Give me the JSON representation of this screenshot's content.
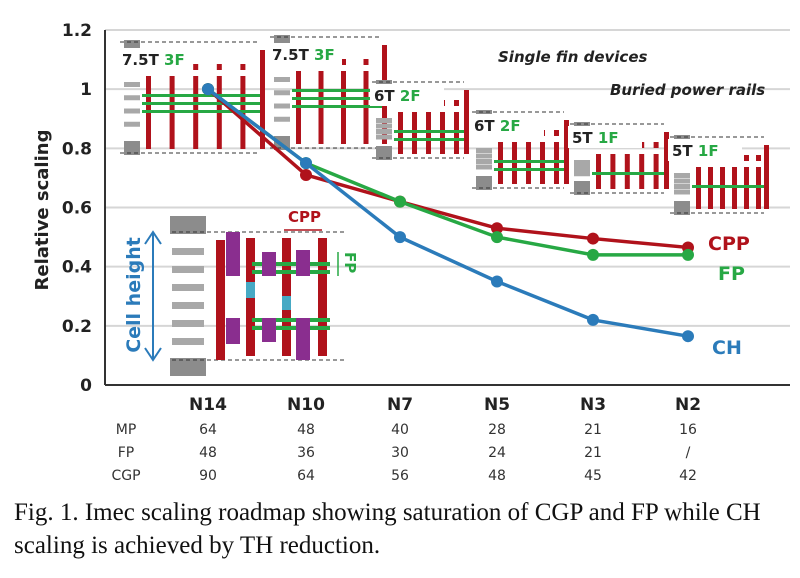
{
  "chart_data": {
    "type": "line",
    "categories": [
      "N14",
      "N10",
      "N7",
      "N5",
      "N3",
      "N2"
    ],
    "ylabel": "Relative scaling",
    "ylim": [
      0,
      1.2
    ],
    "yticks": [
      "0",
      "0.2",
      "0.4",
      "0.6",
      "0.8",
      "1",
      "1.2"
    ],
    "grid": true,
    "series": [
      {
        "name": "CPP",
        "color": "#b0121b",
        "values": [
          1.0,
          0.71,
          0.62,
          0.53,
          0.495,
          0.465
        ]
      },
      {
        "name": "FP",
        "color": "#27a844",
        "values": [
          1.0,
          0.75,
          0.62,
          0.5,
          0.44,
          0.44
        ]
      },
      {
        "name": "CH",
        "color": "#2b7bba",
        "values": [
          1.0,
          0.75,
          0.5,
          0.35,
          0.22,
          0.165
        ]
      }
    ],
    "annotations": [
      "Single fin devices",
      "Buried power rails"
    ],
    "cells": [
      {
        "tracks": "7.5T",
        "fins": "3F"
      },
      {
        "tracks": "7.5T",
        "fins": "3F"
      },
      {
        "tracks": "6T",
        "fins": "2F"
      },
      {
        "tracks": "6T",
        "fins": "2F"
      },
      {
        "tracks": "5T",
        "fins": "1F"
      },
      {
        "tracks": "5T",
        "fins": "1F"
      }
    ],
    "inset": {
      "cell_height": "Cell height",
      "cpp": "CPP",
      "fp": "FP"
    },
    "table": {
      "rows": [
        {
          "label": "MP",
          "values": [
            "64",
            "48",
            "40",
            "28",
            "21",
            "16"
          ]
        },
        {
          "label": "FP",
          "values": [
            "48",
            "36",
            "30",
            "24",
            "21",
            "/"
          ]
        },
        {
          "label": "CGP",
          "values": [
            "90",
            "64",
            "56",
            "48",
            "45",
            "42"
          ]
        }
      ]
    }
  },
  "caption": "Fig. 1. Imec scaling roadmap showing saturation of CGP and FP while CH scaling is achieved by TH reduction."
}
